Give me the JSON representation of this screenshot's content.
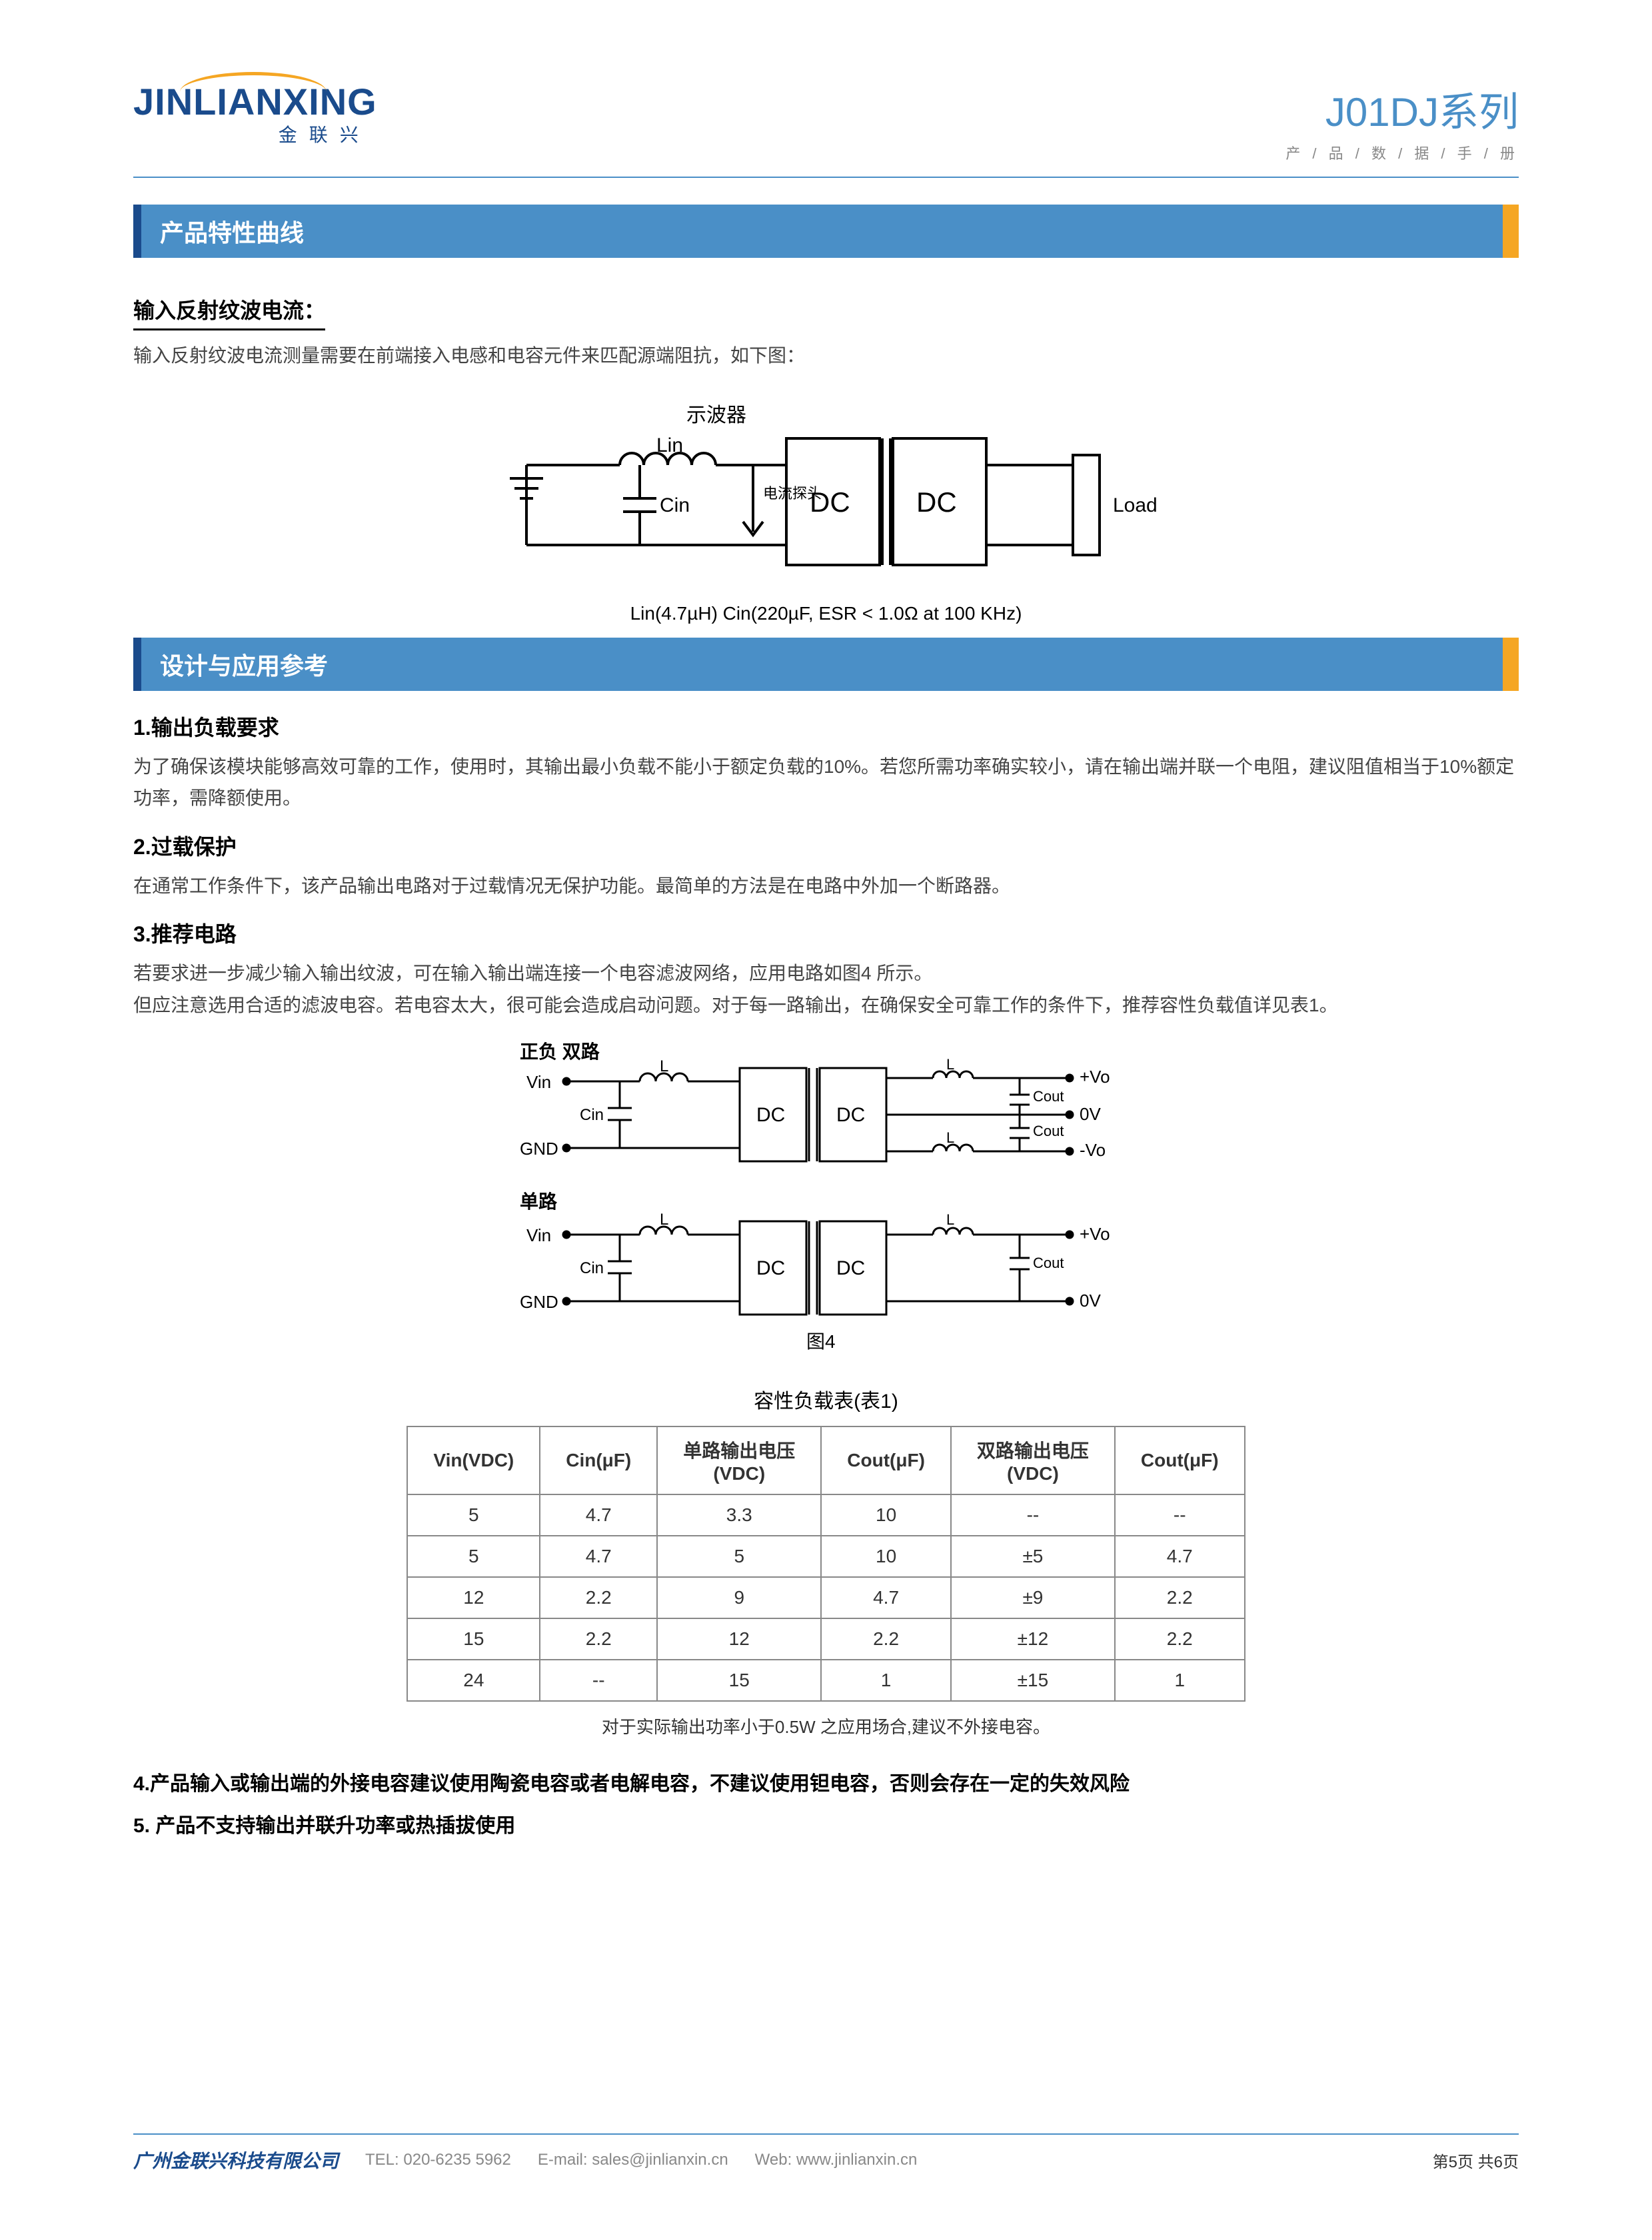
{
  "header": {
    "logo_main": "JINLIANXING",
    "logo_sub": "金联兴",
    "title": "J01DJ系列",
    "subtitle": "产 / 品 / 数 / 据 / 手 / 册"
  },
  "section1": {
    "bar": "产品特性曲线",
    "sub_title": "输入反射纹波电流：",
    "desc": "输入反射纹波电流测量需要在前端接入电感和电容元件来匹配源端阻抗，如下图：",
    "diagram": {
      "osc_label": "示波器",
      "lin_label": "Lin",
      "cin_label": "Cin",
      "probe_label": "电流探头",
      "dc1": "DC",
      "dc2": "DC",
      "load": "Load",
      "caption": "Lin(4.7µH)      Cin(220µF, ESR < 1.0Ω at 100 KHz)"
    }
  },
  "section2": {
    "bar": "设计与应用参考",
    "item1_title": "1.输出负载要求",
    "item1_text": "为了确保该模块能够高效可靠的工作，使用时，其输出最小负载不能小于额定负载的10%。若您所需功率确实较小，请在输出端并联一个电阻，建议阻值相当于10%额定功率，需降额使用。",
    "item2_title": "2.过载保护",
    "item2_text": "在通常工作条件下，该产品输出电路对于过载情况无保护功能。最简单的方法是在电路中外加一个断路器。",
    "item3_title": "3.推荐电路",
    "item3_text1": "若要求进一步减少输入输出纹波，可在输入输出端连接一个电容滤波网络，应用电路如图4 所示。",
    "item3_text2": "但应注意选用合适的滤波电容。若电容太大，很可能会造成启动问题。对于每一路输出，在确保安全可靠工作的条件下，推荐容性负载值详见表1。",
    "figure4": {
      "dual_label": "正负 双路",
      "single_label": "单路",
      "vin": "Vin",
      "cin": "Cin",
      "gnd": "GND",
      "l": "L",
      "dc1": "DC",
      "dc2": "DC",
      "cout": "Cout",
      "pvo": "+Vo",
      "ov": "0V",
      "nvo": "-Vo",
      "caption": "图4"
    },
    "table": {
      "title": "容性负载表(表1)",
      "columns": [
        "Vin(VDC)",
        "Cin(μF)",
        "单路输出电压 (VDC)",
        "Cout(μF)",
        "双路输出电压 (VDC)",
        "Cout(μF)"
      ],
      "rows": [
        [
          "5",
          "4.7",
          "3.3",
          "10",
          "--",
          "--"
        ],
        [
          "5",
          "4.7",
          "5",
          "10",
          "±5",
          "4.7"
        ],
        [
          "12",
          "2.2",
          "9",
          "4.7",
          "±9",
          "2.2"
        ],
        [
          "15",
          "2.2",
          "12",
          "2.2",
          "±12",
          "2.2"
        ],
        [
          "24",
          "--",
          "15",
          "1",
          "±15",
          "1"
        ]
      ],
      "note": "对于实际输出功率小于0.5W 之应用场合,建议不外接电容。"
    },
    "item4": "4.产品输入或输出端的外接电容建议使用陶瓷电容或者电解电容，不建议使用钽电容，否则会存在一定的失效风险",
    "item5": "5. 产品不支持输出并联升功率或热插拔使用"
  },
  "footer": {
    "company": "广州金联兴科技有限公司",
    "tel_label": "TEL:",
    "tel": "020-6235 5962",
    "email_label": "E-mail:",
    "email": "sales@jinlianxin.cn",
    "web_label": "Web:",
    "web": "www.jinlianxin.cn",
    "page": "第5页 共6页"
  },
  "colors": {
    "primary_blue": "#4a8fc7",
    "dark_blue": "#1a4b8c",
    "orange": "#f5a623",
    "text": "#333333",
    "muted": "#888888"
  }
}
